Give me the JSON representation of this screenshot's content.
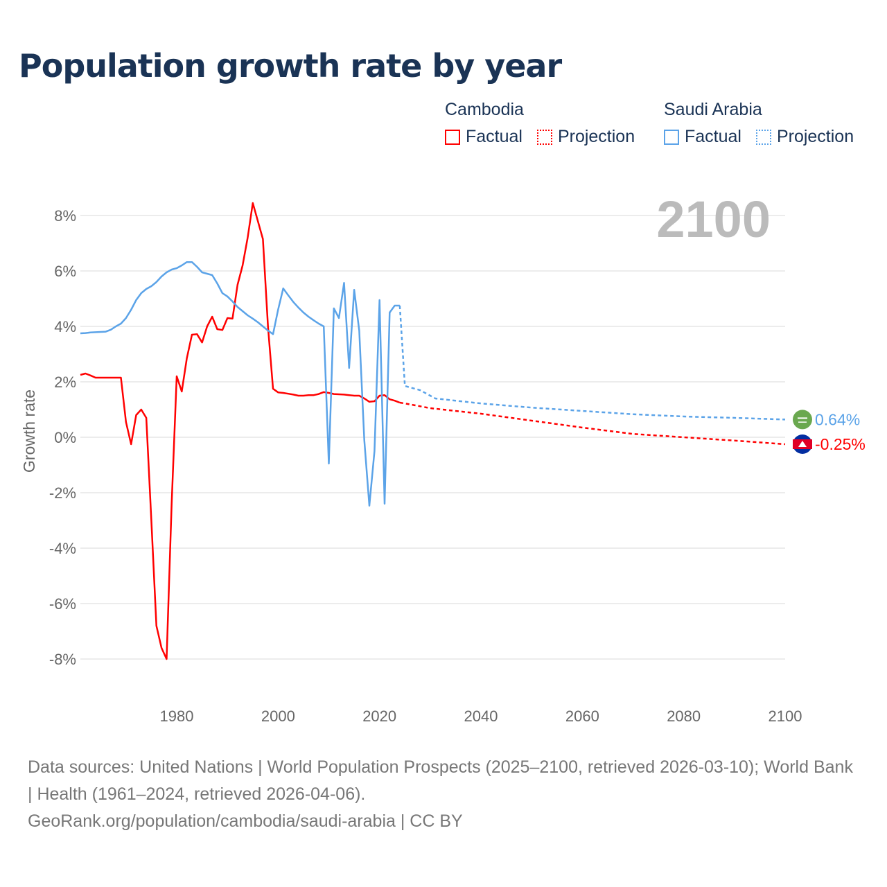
{
  "title": "Population growth rate by year",
  "legend": {
    "groups": [
      {
        "name": "Cambodia",
        "color": "#ff0000",
        "factual": "Factual",
        "projection": "Projection"
      },
      {
        "name": "Saudi Arabia",
        "color": "#5ba3e8",
        "factual": "Factual",
        "projection": "Projection"
      }
    ]
  },
  "year_label": "2100",
  "footer": {
    "sources": "Data sources: United Nations | World Population Prospects (2025–2100, retrieved 2026-03-10); World Bank | Health (1961–2024, retrieved 2026-04-06).",
    "link": "GeoRank.org/population/cambodia/saudi-arabia | CC BY"
  },
  "chart_data": {
    "type": "line",
    "title": "Population growth rate by year",
    "xlabel": "",
    "ylabel": "Growth rate",
    "xlim": [
      1961,
      2100
    ],
    "ylim": [
      -9,
      9
    ],
    "xticks": [
      1980,
      2000,
      2020,
      2040,
      2060,
      2080,
      2100
    ],
    "xtick_labels": [
      "1980",
      "2000",
      "2020",
      "2040",
      "2060",
      "2080",
      "2100"
    ],
    "yticks": [
      8,
      6,
      4,
      2,
      0,
      -2,
      -4,
      -6,
      -8
    ],
    "ytick_labels": [
      "8%",
      "6%",
      "4%",
      "2%",
      "0%",
      "-2%",
      "-4%",
      "-6%",
      "-8%"
    ],
    "grid": true,
    "series": [
      {
        "name": "Cambodia",
        "color": "#ff0000",
        "end_label": "-0.25%",
        "factual": {
          "x": [
            1961,
            1962,
            1963,
            1964,
            1965,
            1966,
            1967,
            1968,
            1969,
            1970,
            1971,
            1972,
            1973,
            1974,
            1975,
            1976,
            1977,
            1978,
            1979,
            1980,
            1981,
            1982,
            1983,
            1984,
            1985,
            1986,
            1987,
            1988,
            1989,
            1990,
            1991,
            1992,
            1993,
            1994,
            1995,
            1996,
            1997,
            1998,
            1999,
            2000,
            2001,
            2002,
            2003,
            2004,
            2005,
            2006,
            2007,
            2008,
            2009,
            2010,
            2011,
            2012,
            2013,
            2014,
            2015,
            2016,
            2017,
            2018,
            2019,
            2020,
            2021,
            2022,
            2023,
            2024
          ],
          "y": [
            2.25,
            2.3,
            2.23,
            2.15,
            2.15,
            2.15,
            2.15,
            2.15,
            2.15,
            0.55,
            -0.25,
            0.8,
            1.0,
            0.7,
            -3.0,
            -6.8,
            -7.6,
            -8.0,
            -2.4,
            2.2,
            1.65,
            2.85,
            3.7,
            3.72,
            3.42,
            4.0,
            4.35,
            3.9,
            3.87,
            4.3,
            4.28,
            5.5,
            6.2,
            7.2,
            8.45,
            7.8,
            7.15,
            4.0,
            1.75,
            1.62,
            1.6,
            1.57,
            1.54,
            1.5,
            1.5,
            1.52,
            1.52,
            1.56,
            1.63,
            1.6,
            1.56,
            1.55,
            1.54,
            1.52,
            1.5,
            1.5,
            1.4,
            1.28,
            1.3,
            1.5,
            1.52,
            1.37,
            1.32,
            1.25
          ]
        },
        "projection": {
          "x": [
            2024,
            2025,
            2030,
            2040,
            2050,
            2060,
            2070,
            2080,
            2090,
            2100
          ],
          "y": [
            1.25,
            1.22,
            1.05,
            0.85,
            0.6,
            0.35,
            0.12,
            0.0,
            -0.12,
            -0.25
          ]
        }
      },
      {
        "name": "Saudi Arabia",
        "color": "#5ba3e8",
        "end_label": "0.64%",
        "factual": {
          "x": [
            1961,
            1962,
            1963,
            1964,
            1965,
            1966,
            1967,
            1968,
            1969,
            1970,
            1971,
            1972,
            1973,
            1974,
            1975,
            1976,
            1977,
            1978,
            1979,
            1980,
            1981,
            1982,
            1983,
            1984,
            1985,
            1986,
            1987,
            1988,
            1989,
            1990,
            1991,
            1992,
            1993,
            1994,
            1995,
            1996,
            1997,
            1998,
            1999,
            2000,
            2001,
            2002,
            2003,
            2004,
            2005,
            2006,
            2007,
            2008,
            2009,
            2010,
            2011,
            2012,
            2013,
            2014,
            2015,
            2016,
            2017,
            2018,
            2019,
            2020,
            2021,
            2022,
            2023,
            2024
          ],
          "y": [
            3.75,
            3.76,
            3.78,
            3.79,
            3.8,
            3.81,
            3.88,
            4.0,
            4.1,
            4.3,
            4.6,
            4.95,
            5.2,
            5.35,
            5.45,
            5.6,
            5.8,
            5.95,
            6.05,
            6.1,
            6.2,
            6.32,
            6.32,
            6.15,
            5.95,
            5.9,
            5.85,
            5.55,
            5.2,
            5.08,
            4.9,
            4.7,
            4.55,
            4.4,
            4.28,
            4.15,
            4.0,
            3.85,
            3.72,
            4.6,
            5.37,
            5.12,
            4.88,
            4.68,
            4.5,
            4.35,
            4.22,
            4.1,
            4.0,
            -0.95,
            4.65,
            4.3,
            5.57,
            2.5,
            5.32,
            3.85,
            -0.1,
            -2.47,
            -0.5,
            4.95,
            -2.4,
            4.5,
            4.75,
            4.75
          ]
        },
        "projection": {
          "x": [
            2024,
            2025,
            2028,
            2031,
            2040,
            2050,
            2060,
            2070,
            2080,
            2090,
            2100
          ],
          "y": [
            4.75,
            1.85,
            1.7,
            1.4,
            1.22,
            1.07,
            0.95,
            0.83,
            0.75,
            0.7,
            0.64
          ]
        }
      }
    ]
  }
}
